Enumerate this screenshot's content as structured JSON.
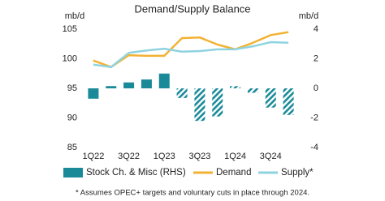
{
  "chart_data": {
    "type": "bar-line",
    "title": "Demand/Supply Balance",
    "y_label": "mb/d",
    "y2_label": "mb/d",
    "categories": [
      "1Q22",
      null,
      "3Q22",
      null,
      "1Q23",
      null,
      "3Q23",
      null,
      "1Q24",
      null,
      "3Q24",
      null
    ],
    "ylim": [
      85,
      105
    ],
    "yticks": [
      85,
      90,
      95,
      100,
      105
    ],
    "y2lim": [
      -4,
      4
    ],
    "y2ticks": [
      -4,
      -2,
      0,
      2,
      4
    ],
    "grid": false,
    "series": [
      {
        "name": "Stock Ch. & Misc (RHS)",
        "type": "bar",
        "axis": "y2",
        "color": "#1a8a99",
        "hatched": [
          false,
          false,
          false,
          false,
          false,
          true,
          true,
          true,
          true,
          true,
          true,
          true
        ],
        "values": [
          -0.7,
          0.15,
          0.4,
          0.6,
          1.0,
          -0.65,
          -2.2,
          -1.9,
          0.15,
          -0.3,
          -1.3,
          -1.8
        ]
      },
      {
        "name": "Demand",
        "type": "line",
        "color": "#f2b234",
        "values": [
          99.7,
          98.6,
          100.6,
          100.5,
          100.5,
          103.5,
          103.6,
          102.4,
          101.6,
          102.7,
          104.0,
          104.5
        ]
      },
      {
        "name": "Supply*",
        "type": "line",
        "color": "#8fd3e0",
        "values": [
          99.0,
          98.6,
          101.0,
          101.4,
          101.7,
          101.2,
          101.3,
          101.6,
          101.6,
          102.1,
          102.8,
          102.7
        ]
      }
    ],
    "footnote": "* Assumes OPEC+ targets and voluntary cuts in place through 2024."
  }
}
